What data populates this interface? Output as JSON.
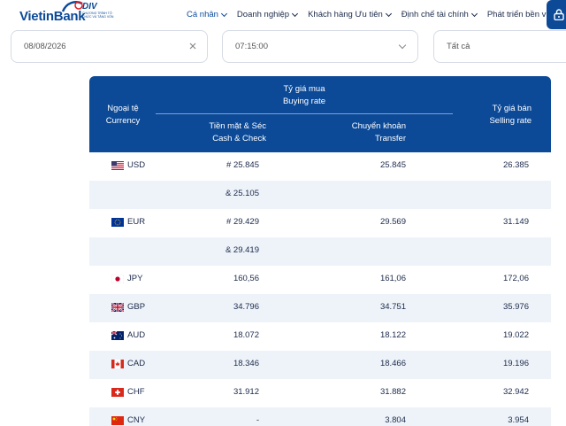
{
  "header": {
    "logo_text_vietin": "Vietin",
    "logo_text_bank": "Bank",
    "div_logo_title": "DIV",
    "div_logo_subtitle": "CHƯƠNG TRÌNH TỎ CHỨC VÀ TĂNG VỐN",
    "nav": [
      {
        "label": "Cá nhân",
        "active": true
      },
      {
        "label": "Doanh nghiệp",
        "active": false
      },
      {
        "label": "Khách hàng Ưu tiên",
        "active": false
      },
      {
        "label": "Định chế tài chính",
        "active": false
      },
      {
        "label": "Phát triển bền vững",
        "active": false
      }
    ],
    "lock_icon": "lock-icon"
  },
  "filters": {
    "date_value": "08/08/2026",
    "time_value": "07:15:00",
    "currency_value": "Tất cả"
  },
  "table": {
    "headers": {
      "currency_vi": "Ngoại tệ",
      "currency_en": "Currency",
      "buy_vi": "Tỷ giá mua",
      "buy_en": "Buying rate",
      "cash_vi": "Tiền mặt & Séc",
      "cash_en": "Cash & Check",
      "transfer_vi": "Chuyển khoản",
      "transfer_en": "Transfer",
      "sell_vi": "Tỷ giá bán",
      "sell_en": "Selling rate"
    },
    "rows": [
      {
        "flag": "us",
        "code": "USD",
        "cash": "# 25.845",
        "transfer": "25.845",
        "sell": "26.385"
      },
      {
        "flag": "",
        "code": "",
        "cash": "& 25.105",
        "transfer": "",
        "sell": ""
      },
      {
        "flag": "eu",
        "code": "EUR",
        "cash": "# 29.429",
        "transfer": "29.569",
        "sell": "31.149"
      },
      {
        "flag": "",
        "code": "",
        "cash": "& 29.419",
        "transfer": "",
        "sell": ""
      },
      {
        "flag": "jp",
        "code": "JPY",
        "cash": "160,56",
        "transfer": "161,06",
        "sell": "172,06"
      },
      {
        "flag": "gb",
        "code": "GBP",
        "cash": "34.796",
        "transfer": "34.751",
        "sell": "35.976"
      },
      {
        "flag": "au",
        "code": "AUD",
        "cash": "18.072",
        "transfer": "18.122",
        "sell": "19.022"
      },
      {
        "flag": "ca",
        "code": "CAD",
        "cash": "18.346",
        "transfer": "18.466",
        "sell": "19.196"
      },
      {
        "flag": "ch",
        "code": "CHF",
        "cash": "31.912",
        "transfer": "31.882",
        "sell": "32.942"
      },
      {
        "flag": "cn",
        "code": "CNY",
        "cash": "-",
        "transfer": "3.804",
        "sell": "3.954"
      }
    ]
  },
  "colors": {
    "brand": "#0c4a98",
    "row_alt": "#eef3f9"
  }
}
